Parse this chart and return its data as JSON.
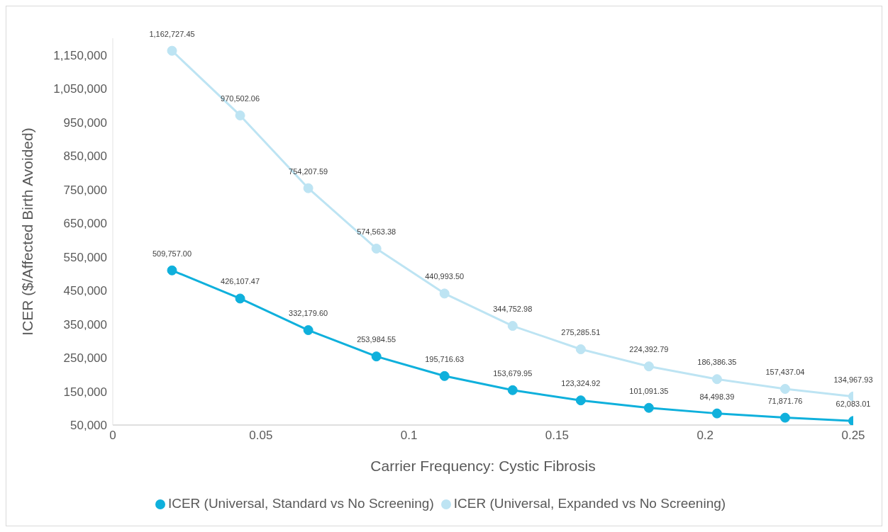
{
  "chart_data": {
    "type": "line",
    "xlabel": "Carrier Frequency: Cystic Fibrosis",
    "ylabel": "ICER ($/Affected Birth Avoided)",
    "x": [
      0.02,
      0.043,
      0.066,
      0.089,
      0.112,
      0.135,
      0.158,
      0.181,
      0.204,
      0.227,
      0.25
    ],
    "series": [
      {
        "name": "ICER (Universal, Standard vs No Screening)",
        "color": "#0fb0dc",
        "values": [
          509757.0,
          426107.47,
          332179.6,
          253984.55,
          195716.63,
          153679.95,
          123324.92,
          101091.35,
          84498.39,
          71871.76,
          62083.01
        ],
        "value_labels": [
          "509,757.00",
          "426,107.47",
          "332,179.60",
          "253,984.55",
          "195,716.63",
          "153,679.95",
          "123,324.92",
          "101,091.35",
          "84,498.39",
          "71,871.76",
          "62,083.01"
        ]
      },
      {
        "name": "ICER (Universal, Expanded vs No Screening)",
        "color": "#bde4f3",
        "values": [
          1162727.45,
          970502.06,
          754207.59,
          574563.38,
          440993.5,
          344752.98,
          275285.51,
          224392.79,
          186386.35,
          157437.04,
          134967.93
        ],
        "value_labels": [
          "1,162,727.45",
          "970,502.06",
          "754,207.59",
          "574,563.38",
          "440,993.50",
          "344,752.98",
          "275,285.51",
          "224,392.79",
          "186,386.35",
          "157,437.04",
          "134,967.93"
        ]
      }
    ],
    "xlim": [
      0,
      0.25
    ],
    "xticks": [
      0,
      0.05,
      0.1,
      0.15,
      0.2,
      0.25
    ],
    "ylim": [
      50000,
      1200000
    ],
    "yticks": [
      {
        "value": 50000,
        "label": "50,000"
      },
      {
        "value": 150000,
        "label": "150,000"
      },
      {
        "value": 250000,
        "label": "250,000"
      },
      {
        "value": 350000,
        "label": "350,000"
      },
      {
        "value": 450000,
        "label": "450,000"
      },
      {
        "value": 550000,
        "label": "550,000"
      },
      {
        "value": 650000,
        "label": "650,000"
      },
      {
        "value": 750000,
        "label": "750,000"
      },
      {
        "value": 850000,
        "label": "850,000"
      },
      {
        "value": 950000,
        "label": "950,000"
      },
      {
        "value": 1050000,
        "label": "1,050,000"
      },
      {
        "value": 1150000,
        "label": "1,150,000"
      }
    ],
    "legend": "bottom",
    "marker": "circle",
    "line_style": "solid"
  }
}
